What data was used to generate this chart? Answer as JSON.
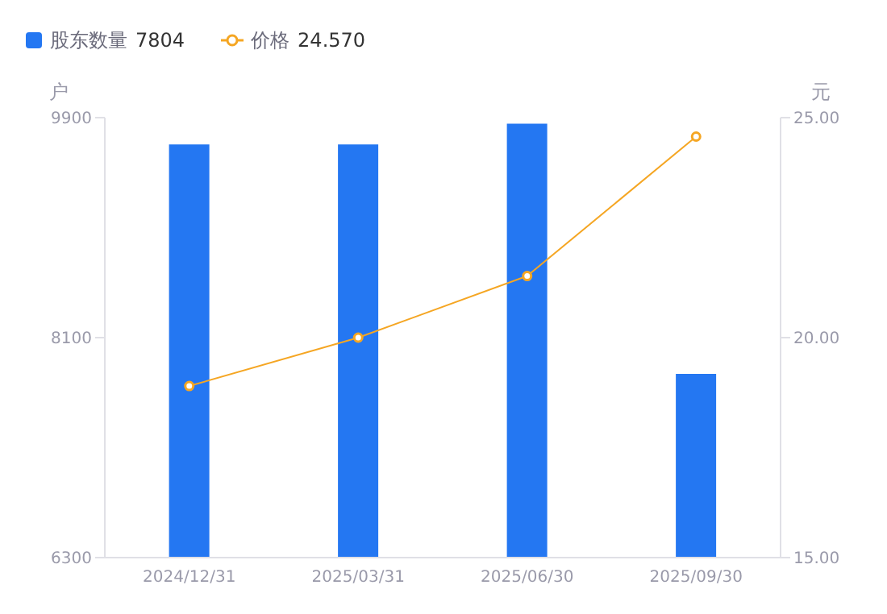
{
  "chart_data": {
    "type": "bar",
    "categories": [
      "2024/12/31",
      "2025/03/31",
      "2025/06/30",
      "2025/09/30"
    ],
    "series": [
      {
        "name": "股东数量 7804",
        "color": "#2477f2",
        "values": [
          9680,
          9680,
          9850,
          7804
        ]
      },
      {
        "name": "价格 24.570",
        "type": "line",
        "axis": "y2",
        "color": "#f5a623",
        "values": [
          18.9,
          20.0,
          21.4,
          24.57
        ]
      }
    ],
    "ylabel": "户",
    "y2label": "元",
    "ylim": [
      6300,
      9900
    ],
    "yticks": [
      6300,
      8100,
      9900
    ],
    "y2lim": [
      15,
      25
    ],
    "y2ticks": [
      {
        "value": 15,
        "label": "15.00"
      },
      {
        "value": 20,
        "label": "20.00"
      },
      {
        "value": 25,
        "label": "25.00"
      }
    ],
    "grid": false,
    "legend": "top left",
    "marker": "circle",
    "line_style": "solid"
  }
}
